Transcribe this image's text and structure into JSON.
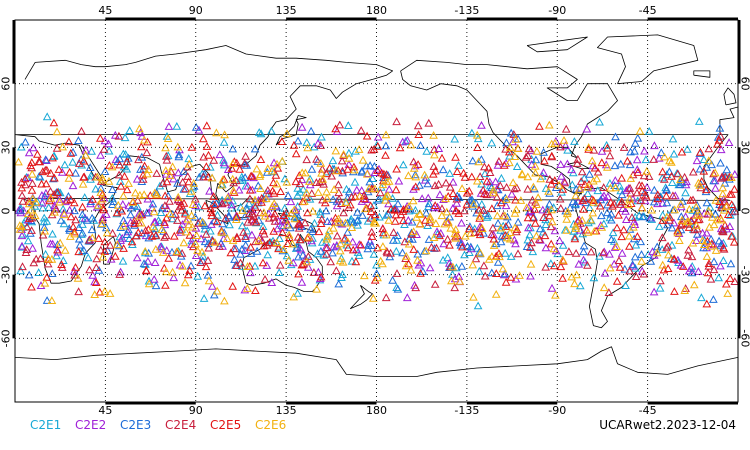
{
  "map": {
    "projection": "cylindrical-equidistant",
    "center_longitude": 180,
    "graticule_style": "dotted",
    "lat_ticks": [
      {
        "lat": 60,
        "label": "60"
      },
      {
        "lat": 30,
        "label": "30"
      },
      {
        "lat": 0,
        "label": "0"
      },
      {
        "lat": -30,
        "label": "-30"
      },
      {
        "lat": -60,
        "label": "-60"
      }
    ],
    "lon_ticks": [
      {
        "lon": 45,
        "label": "45"
      },
      {
        "lon": 90,
        "label": "90"
      },
      {
        "lon": 135,
        "label": "135"
      },
      {
        "lon": 180,
        "label": "180"
      },
      {
        "lon": 225,
        "label": "-135"
      },
      {
        "lon": 270,
        "label": "-90"
      },
      {
        "lon": 315,
        "label": "-45"
      }
    ],
    "observation_lat_range": [
      -45,
      45
    ],
    "marker": "open-triangle"
  },
  "chart_data": {
    "type": "scatter",
    "series": [
      {
        "name": "C2E1",
        "color": "#19a9d6"
      },
      {
        "name": "C2E2",
        "color": "#a020d8"
      },
      {
        "name": "C2E3",
        "color": "#1e6cd8"
      },
      {
        "name": "C2E4",
        "color": "#c81e3c"
      },
      {
        "name": "C2E5",
        "color": "#e31414"
      },
      {
        "name": "C2E6",
        "color": "#f2b111"
      }
    ],
    "grid": true,
    "legend_placement": "bottom-left"
  },
  "footer": {
    "product_label": "UCARwet2.2023-12-04"
  }
}
